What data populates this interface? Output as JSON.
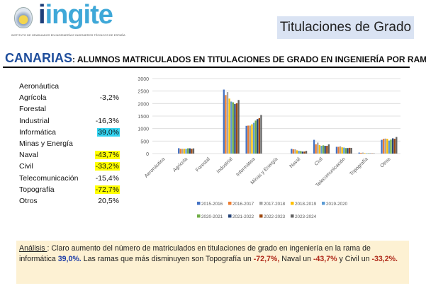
{
  "logo": {
    "word": "ingite",
    "subtitle": "INSTITUTO DE GRADUADOS EN INGENIERÍA E INGENIEROS TÉCNICOS DE ESPAÑA"
  },
  "header": {
    "title": "Titulaciones de Grado",
    "region": "CANARIAS",
    "subtitle": ": ALUMNOS MATRICULADOS EN TITULACIONES DE GRADO EN INGENIERÍA POR RAMA"
  },
  "variation": [
    {
      "label": "Aeronáutica",
      "value": "",
      "highlight": ""
    },
    {
      "label": "Agrícola",
      "value": "-3,2%",
      "highlight": ""
    },
    {
      "label": "Forestal",
      "value": "",
      "highlight": ""
    },
    {
      "label": "Industrial",
      "value": "-16,3%",
      "highlight": ""
    },
    {
      "label": "Informática",
      "value": "39,0%",
      "highlight": "cyan"
    },
    {
      "label": "Minas y Energía",
      "value": "",
      "highlight": ""
    },
    {
      "label": "Naval",
      "value": "-43,7%",
      "highlight": "yellow"
    },
    {
      "label": "Civil",
      "value": "-33,2%",
      "highlight": "yellow"
    },
    {
      "label": "Telecomunicación",
      "value": "-15,4%",
      "highlight": ""
    },
    {
      "label": "Topografía",
      "value": "-72,7%",
      "highlight": "yellow"
    },
    {
      "label": "Otros",
      "value": "20,5%",
      "highlight": ""
    }
  ],
  "chart_data": {
    "type": "bar",
    "title": "",
    "xlabel": "",
    "ylabel": "",
    "ylim": [
      0,
      3000
    ],
    "yticks": [
      "0",
      "500",
      "1000",
      "1500",
      "2000",
      "2500",
      "3000"
    ],
    "grid": true,
    "legend_position": "bottom",
    "categories": [
      "Aeronáutica",
      "Agrícola",
      "Forestal",
      "Industrial",
      "Informática",
      "Minas y Energía",
      "Naval",
      "Civil",
      "Telecomunicación",
      "Topografía",
      "Otros"
    ],
    "series": [
      {
        "name": "2015-2016",
        "color": "#4472c4",
        "values": [
          0,
          215,
          0,
          2560,
          1110,
          0,
          190,
          550,
          270,
          40,
          550
        ]
      },
      {
        "name": "2016-2017",
        "color": "#ed7d31",
        "values": [
          0,
          190,
          0,
          2340,
          1120,
          0,
          170,
          370,
          270,
          30,
          590
        ]
      },
      {
        "name": "2017-2018",
        "color": "#a5a5a5",
        "values": [
          0,
          190,
          0,
          2460,
          1120,
          0,
          170,
          440,
          290,
          40,
          600
        ]
      },
      {
        "name": "2018-2019",
        "color": "#ffc000",
        "values": [
          0,
          190,
          0,
          2200,
          1170,
          0,
          130,
          340,
          250,
          20,
          590
        ]
      },
      {
        "name": "2019-2020",
        "color": "#5b9bd5",
        "values": [
          0,
          190,
          0,
          2080,
          1230,
          0,
          110,
          310,
          240,
          15,
          520
        ]
      },
      {
        "name": "2020-2021",
        "color": "#70ad47",
        "values": [
          0,
          210,
          0,
          2050,
          1320,
          0,
          100,
          330,
          220,
          15,
          560
        ]
      },
      {
        "name": "2021-2022",
        "color": "#264478",
        "values": [
          0,
          210,
          0,
          1980,
          1380,
          0,
          80,
          310,
          220,
          10,
          610
        ]
      },
      {
        "name": "2022-2023",
        "color": "#9e480e",
        "values": [
          0,
          190,
          0,
          2010,
          1420,
          0,
          80,
          310,
          230,
          10,
          590
        ]
      },
      {
        "name": "2023-2024",
        "color": "#636363",
        "values": [
          0,
          208,
          0,
          2143,
          1543,
          0,
          107,
          367,
          228,
          11,
          663
        ]
      }
    ]
  },
  "analysis": {
    "label": "Análisis ",
    "t1": ": Claro aumento del número de matriculados en titulaciones de grado en ingeniería en la rama de informática ",
    "v1": "39,0%.",
    "t2": " Las ramas que más disminuyen son Topografía un ",
    "v2": "-72,7%,",
    "t3": " Naval un ",
    "v3": "-43,7%",
    "t4": " y Civil un ",
    "v4": "-33,2%."
  }
}
